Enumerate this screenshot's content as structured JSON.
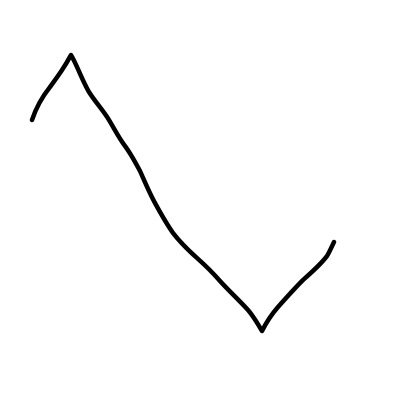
{
  "canvas": {
    "background_color": "#ffffff"
  },
  "sketch": {
    "stroke_color": "#000000"
  }
}
